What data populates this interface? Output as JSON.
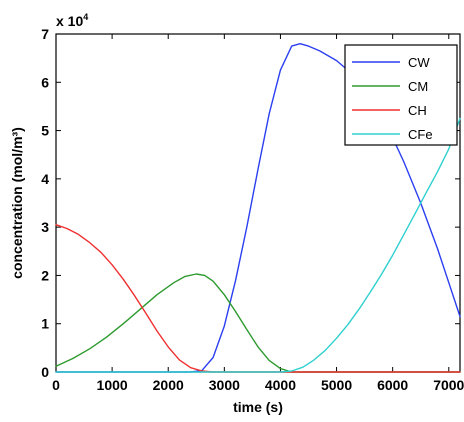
{
  "chart_data": {
    "type": "line",
    "title": "",
    "xlabel": "time (s)",
    "ylabel": "concentration (mol/m³)",
    "y_multiplier_base": "x 10",
    "y_multiplier_exp": "4",
    "xlim": [
      0,
      7200
    ],
    "ylim": [
      0,
      7
    ],
    "x_ticks": [
      0,
      1000,
      2000,
      3000,
      4000,
      5000,
      6000,
      7000
    ],
    "y_ticks": [
      0,
      1,
      2,
      3,
      4,
      5,
      6,
      7
    ],
    "grid": false,
    "legend_position": "top-right",
    "series": [
      {
        "name": "CW",
        "color": "#2b3ff0",
        "x": [
          0,
          2400,
          2600,
          2800,
          3000,
          3200,
          3400,
          3600,
          3800,
          4000,
          4200,
          4350,
          4500,
          4700,
          5000,
          5300,
          5600,
          5900,
          6200,
          6500,
          6800,
          7000,
          7200
        ],
        "y": [
          0,
          0,
          0.03,
          0.3,
          0.95,
          1.9,
          3.0,
          4.2,
          5.35,
          6.25,
          6.75,
          6.8,
          6.75,
          6.65,
          6.45,
          6.15,
          5.7,
          5.1,
          4.35,
          3.5,
          2.55,
          1.85,
          1.15
        ]
      },
      {
        "name": "CM",
        "color": "#2e9a2e",
        "x": [
          0,
          300,
          600,
          900,
          1200,
          1500,
          1800,
          2100,
          2300,
          2500,
          2650,
          2800,
          3000,
          3200,
          3400,
          3600,
          3800,
          4000,
          4200,
          4400,
          7200
        ],
        "y": [
          0.12,
          0.28,
          0.48,
          0.72,
          1.0,
          1.3,
          1.6,
          1.85,
          1.98,
          2.03,
          2.0,
          1.88,
          1.6,
          1.25,
          0.88,
          0.52,
          0.24,
          0.07,
          0.0,
          0.0,
          0.0
        ]
      },
      {
        "name": "CH",
        "color": "#f03030",
        "x": [
          0,
          200,
          400,
          600,
          800,
          1000,
          1200,
          1400,
          1600,
          1800,
          2000,
          2200,
          2400,
          2600,
          2800,
          3000,
          7200
        ],
        "y": [
          3.05,
          2.97,
          2.85,
          2.68,
          2.48,
          2.22,
          1.92,
          1.58,
          1.22,
          0.85,
          0.52,
          0.25,
          0.09,
          0.02,
          0.0,
          0.0,
          0.0
        ]
      },
      {
        "name": "CFe",
        "color": "#30d0d0",
        "x": [
          0,
          4000,
          4200,
          4400,
          4600,
          4800,
          5000,
          5200,
          5400,
          5600,
          5800,
          6000,
          6200,
          6400,
          6600,
          6800,
          7000,
          7200
        ],
        "y": [
          0,
          0,
          0.02,
          0.1,
          0.25,
          0.45,
          0.7,
          0.98,
          1.3,
          1.65,
          2.02,
          2.42,
          2.85,
          3.28,
          3.72,
          4.15,
          4.62,
          5.25
        ]
      }
    ]
  }
}
